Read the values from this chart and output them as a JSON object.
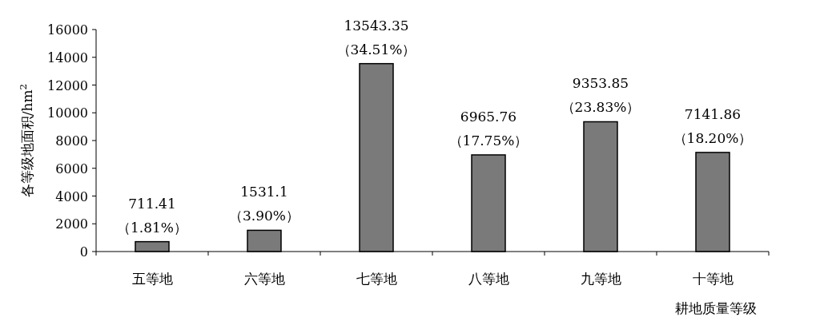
{
  "chart_data": {
    "type": "bar",
    "ylabel": "各等级地面积/hm$^{2}$",
    "xlabel": "耕地质量等级",
    "categories": [
      "五等地",
      "六等地",
      "七等地",
      "八等地",
      "九等地",
      "十等地"
    ],
    "values": [
      711.41,
      1531.1,
      13543.35,
      6965.76,
      9353.85,
      7141.86
    ],
    "value_labels": [
      "711.41\n（1.81%）",
      "1531.1\n（3.90%）",
      "13543.35\n（34.51%）",
      "6965.76\n（17.75%）",
      "9353.85\n（23.83%）",
      "7141.86\n（18.20%）"
    ],
    "color": "#7a7a7a",
    "ylim": [
      0,
      16000
    ],
    "yticks": [
      0,
      2000,
      4000,
      6000,
      8000,
      10000,
      12000,
      14000,
      16000
    ],
    "grid": false
  }
}
